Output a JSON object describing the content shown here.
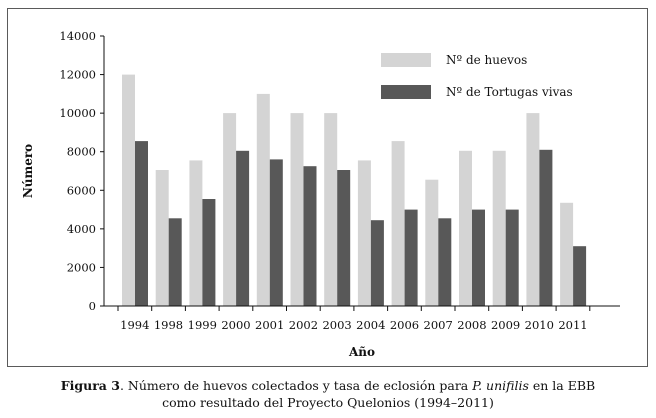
{
  "chart_data": {
    "type": "bar",
    "categories": [
      "1994",
      "1998",
      "1999",
      "2000",
      "2001",
      "2002",
      "2003",
      "2004",
      "2006",
      "2007",
      "2008",
      "2009",
      "2010",
      "2011"
    ],
    "series": [
      {
        "name": "Nº de huevos",
        "color": "#d4d4d4",
        "values": [
          12000,
          7050,
          7550,
          10000,
          11000,
          10000,
          10000,
          7550,
          8550,
          6550,
          8050,
          8050,
          10000,
          5350
        ]
      },
      {
        "name": "Nº de Tortugas vivas",
        "color": "#585858",
        "values": [
          8550,
          4550,
          5550,
          8050,
          7600,
          7250,
          7050,
          4450,
          5000,
          4550,
          5000,
          5000,
          8100,
          3100
        ]
      }
    ],
    "xlabel": "Año",
    "ylabel": "Número",
    "ylim": [
      0,
      14000
    ],
    "yticks": [
      0,
      2000,
      4000,
      6000,
      8000,
      10000,
      12000,
      14000
    ],
    "grid": false,
    "legend": "top-right"
  },
  "caption": {
    "label": "Figura 3",
    "text_before": ". Número de huevos colectados y tasa de eclosión para ",
    "species": "P. unifilis",
    "text_after": " en la EBB",
    "line2": "como resultado del Proyecto Quelonios (1994–2011)"
  }
}
